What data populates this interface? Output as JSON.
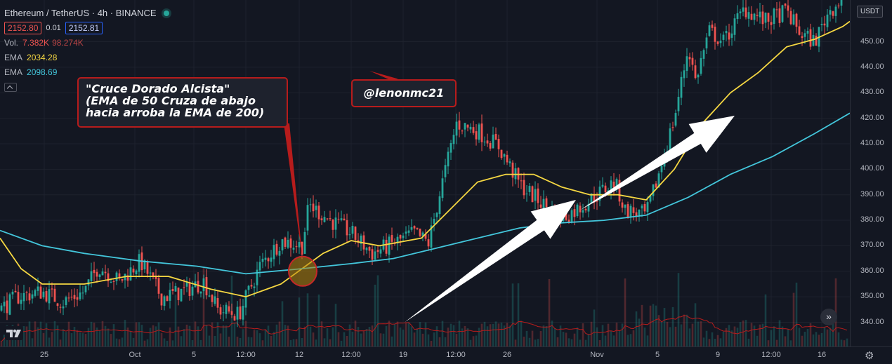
{
  "symbol": {
    "title": "Ethereum / TetherUS · 4h · BINANCE",
    "sell_price": "2152.80",
    "spread": "0.01",
    "buy_price": "2152.81"
  },
  "indicators": {
    "volume": {
      "label": "Vol.",
      "value": "7.382K",
      "avg": "98.274K"
    },
    "ema50": {
      "label": "EMA",
      "value": "2034.28",
      "color": "#f5d742"
    },
    "ema200": {
      "label": "EMA",
      "value": "2098.69",
      "color": "#43c6db"
    }
  },
  "currency_label": "USDT",
  "annotations": {
    "golden_cross": {
      "line1": "\"Cruce Dorado Alcista\"",
      "line2": "(EMA de 50 Cruza de abajo",
      "line3": "hacia arroba la EMA de 200)"
    },
    "author": "@lenonmc21"
  },
  "icons": {
    "scroll": "double-chevron-right-icon",
    "logo": "tradingview-logo-icon",
    "settings": "gear-icon"
  },
  "colors": {
    "up": "#26a69a",
    "down": "#ef5350",
    "background": "#131722",
    "ema50": "#f5d742",
    "ema200": "#43c6db",
    "callout_border": "#b71c1c"
  },
  "chart_data": {
    "type": "candlestick",
    "timeframe": "4h",
    "x_ticks": [
      "25",
      "Oct",
      "5",
      "12:00",
      "12",
      "12:00",
      "19",
      "12:00",
      "26",
      "Nov",
      "5",
      "9",
      "12:00",
      "16"
    ],
    "y_ticks": [
      340.0,
      350.0,
      360.0,
      370.0,
      380.0,
      390.0,
      400.0,
      410.0,
      420.0,
      430.0,
      440.0,
      450.0
    ],
    "ylim": [
      330,
      460
    ],
    "close_path": [
      [
        0,
        345
      ],
      [
        25,
        350
      ],
      [
        60,
        352
      ],
      [
        90,
        348
      ],
      [
        120,
        352
      ],
      [
        140,
        362
      ],
      [
        170,
        356
      ],
      [
        200,
        364
      ],
      [
        230,
        350
      ],
      [
        260,
        352
      ],
      [
        290,
        356
      ],
      [
        310,
        345
      ],
      [
        340,
        343
      ],
      [
        370,
        362
      ],
      [
        400,
        372
      ],
      [
        430,
        370
      ],
      [
        440,
        386
      ],
      [
        470,
        380
      ],
      [
        500,
        375
      ],
      [
        530,
        367
      ],
      [
        560,
        371
      ],
      [
        590,
        375
      ],
      [
        610,
        371
      ],
      [
        630,
        395
      ],
      [
        650,
        418
      ],
      [
        680,
        415
      ],
      [
        710,
        409
      ],
      [
        740,
        394
      ],
      [
        770,
        387
      ],
      [
        800,
        381
      ],
      [
        820,
        384
      ],
      [
        850,
        390
      ],
      [
        875,
        395
      ],
      [
        890,
        384
      ],
      [
        920,
        382
      ],
      [
        940,
        400
      ],
      [
        960,
        420
      ],
      [
        980,
        448
      ],
      [
        990,
        435
      ],
      [
        1010,
        454
      ],
      [
        1030,
        450
      ],
      [
        1060,
        463
      ],
      [
        1090,
        458
      ],
      [
        1120,
        462
      ],
      [
        1140,
        453
      ],
      [
        1160,
        450
      ],
      [
        1180,
        462
      ],
      [
        1210,
        470
      ]
    ],
    "series": [
      {
        "name": "EMA",
        "period_note": "EMA 50",
        "color": "#f5d742",
        "points": [
          [
            0,
            373
          ],
          [
            30,
            361
          ],
          [
            60,
            355
          ],
          [
            120,
            355
          ],
          [
            180,
            358
          ],
          [
            240,
            358
          ],
          [
            300,
            353
          ],
          [
            350,
            350
          ],
          [
            400,
            355
          ],
          [
            430,
            361
          ],
          [
            460,
            367
          ],
          [
            500,
            372
          ],
          [
            540,
            370
          ],
          [
            600,
            373
          ],
          [
            640,
            384
          ],
          [
            680,
            395
          ],
          [
            720,
            398
          ],
          [
            760,
            398
          ],
          [
            800,
            393
          ],
          [
            840,
            390
          ],
          [
            880,
            390
          ],
          [
            920,
            388
          ],
          [
            960,
            400
          ],
          [
            1000,
            418
          ],
          [
            1040,
            430
          ],
          [
            1080,
            438
          ],
          [
            1120,
            448
          ],
          [
            1160,
            451
          ],
          [
            1200,
            456
          ],
          [
            1210,
            458
          ]
        ]
      },
      {
        "name": "EMA",
        "period_note": "EMA 200",
        "color": "#43c6db",
        "points": [
          [
            0,
            376
          ],
          [
            60,
            370
          ],
          [
            120,
            367
          ],
          [
            200,
            364
          ],
          [
            280,
            362
          ],
          [
            350,
            359
          ],
          [
            430,
            361
          ],
          [
            500,
            363
          ],
          [
            560,
            365
          ],
          [
            620,
            369
          ],
          [
            680,
            373
          ],
          [
            740,
            377
          ],
          [
            800,
            379
          ],
          [
            860,
            380
          ],
          [
            920,
            382
          ],
          [
            980,
            389
          ],
          [
            1040,
            398
          ],
          [
            1100,
            405
          ],
          [
            1160,
            414
          ],
          [
            1210,
            422
          ]
        ]
      }
    ],
    "volume": {
      "avg_line_color": "#b71c1c"
    },
    "annotation_circle": {
      "x": 431,
      "price": 360
    },
    "arrows": [
      {
        "from": [
          576,
          340
        ],
        "to": [
          820,
          388
        ]
      },
      {
        "from": [
          826,
          384
        ],
        "to": [
          1046,
          421
        ]
      }
    ]
  }
}
